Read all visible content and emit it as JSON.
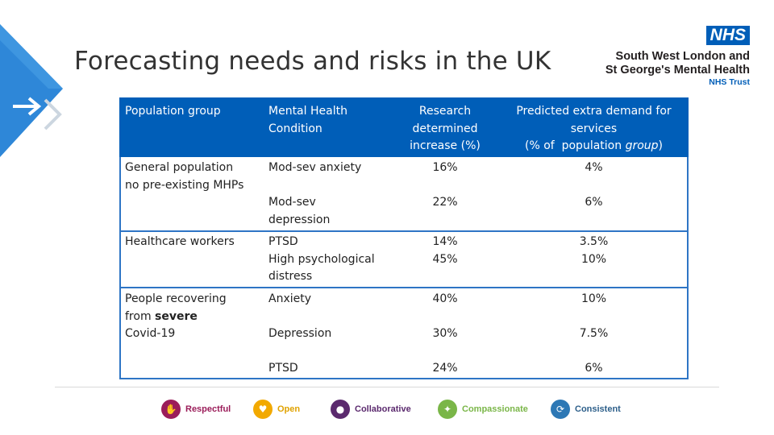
{
  "title": "Forecasting needs and risks in the UK",
  "logo": {
    "badge": "NHS",
    "org_line1": "South West London and",
    "org_line2": "St George's Mental Health",
    "org_line3": "NHS Trust"
  },
  "table": {
    "headers": {
      "group": "Population group",
      "condition_1": "Mental Health",
      "condition_2": "Condition",
      "research_1": "Research",
      "research_2": "determined",
      "research_3": "increase (%)",
      "demand_1": "Predicted extra demand for",
      "demand_2": "services",
      "demand_3_prefix": "(% of  population ",
      "demand_3_em": "group",
      "demand_3_suffix": ")"
    },
    "section1": {
      "group_1": "General population",
      "group_2": "no pre-existing MHPs",
      "row1": {
        "condition": "Mod-sev anxiety",
        "increase": "16%",
        "demand": "4%"
      },
      "row2": {
        "condition_1": "Mod-sev",
        "condition_2": "depression",
        "increase": "22%",
        "demand": "6%"
      }
    },
    "section2": {
      "group": "Healthcare workers",
      "condition_1": "PTSD",
      "condition_2": "High psychological",
      "condition_3": "distress",
      "increase_1": "14%",
      "increase_2": "45%",
      "demand_1": "3.5%",
      "demand_2": "10%"
    },
    "section3": {
      "group_1": "People recovering",
      "group_2_prefix": "from ",
      "group_2_bold": "severe",
      "group_3": "Covid-19",
      "row1": {
        "condition": "Anxiety",
        "increase": "40%",
        "demand": "10%"
      },
      "row2": {
        "condition": "Depression",
        "increase": "30%",
        "demand": "7.5%"
      },
      "row3": {
        "condition": "PTSD",
        "increase": "24%",
        "demand": "6%"
      }
    }
  },
  "values_bar": [
    {
      "label": "Respectful",
      "color": "#9b1d5a",
      "text_color": "#9b1d5a",
      "icon": "handshake-icon",
      "glyph": "✋"
    },
    {
      "label": "Open",
      "color": "#f2a900",
      "text_color": "#e0a200",
      "icon": "heart-shield-icon",
      "glyph": "♥"
    },
    {
      "label": "Collaborative",
      "color": "#5b2a6e",
      "text_color": "#5b2a6e",
      "icon": "people-group-icon",
      "glyph": "●"
    },
    {
      "label": "Compassionate",
      "color": "#7ab648",
      "text_color": "#7ab648",
      "icon": "helping-hands-icon",
      "glyph": "✦"
    },
    {
      "label": "Consistent",
      "color": "#2d78b5",
      "text_color": "#2d5f8a",
      "icon": "cycle-icon",
      "glyph": "⟳"
    }
  ],
  "colors": {
    "header_bg": "#005eb8",
    "border": "#2e75c5",
    "nhs_blue": "#005eb8"
  }
}
